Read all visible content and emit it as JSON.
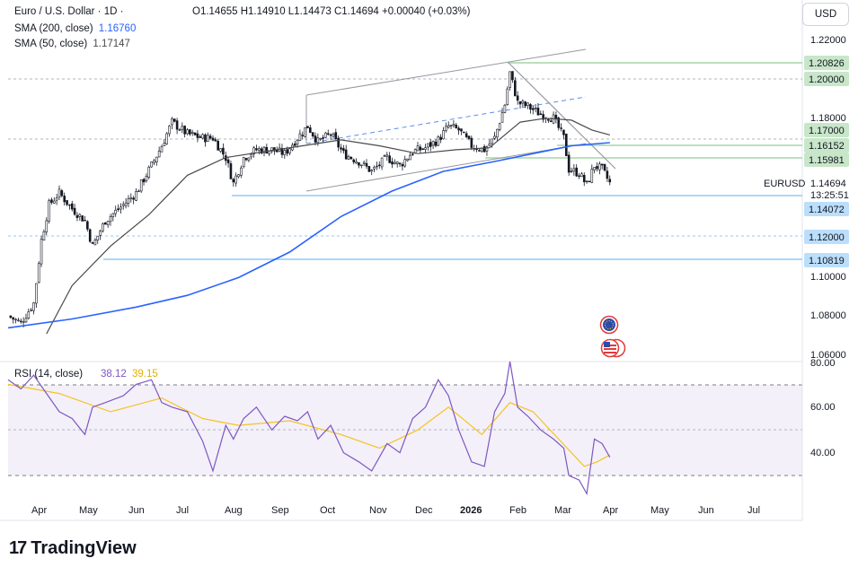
{
  "header": {
    "symbol_title": "Euro / U.S. Dollar · 1D ·",
    "ohlc": "O1.14655  H1.14910  L1.14473  C1.14694  +0.00040 (+0.03%)",
    "sma200_label": "SMA (200, close)",
    "sma200_value": "1.16760",
    "sma50_label": "SMA (50, close)",
    "sma50_value": "1.17147",
    "currency": "USD"
  },
  "brand": {
    "name": "TradingView",
    "logo_glyph": "17"
  },
  "colors": {
    "sma200": "#2962ff",
    "sma50": "#4a4a4a",
    "rsi": "#7e57c2",
    "rsi_ma": "#f5c320",
    "candle": "#131722",
    "resistance": "#c8e6c9",
    "support": "#bbdefb",
    "trend": "#9598a1"
  },
  "chart_data": {
    "type": "candlestick",
    "symbol": "EURUSD",
    "timeframe": "1D",
    "price_axis_ticks": [
      "1.22000",
      "1.18000",
      "1.10000",
      "1.08000",
      "1.06000"
    ],
    "price_labels": [
      {
        "text": "1.20826",
        "kind": "resistance"
      },
      {
        "text": "1.20000",
        "kind": "resistance"
      },
      {
        "text": "1.17000",
        "kind": "resistance"
      },
      {
        "text": "1.16152",
        "kind": "resistance"
      },
      {
        "text": "1.15981",
        "kind": "resistance"
      },
      {
        "text": "1.14072",
        "kind": "support"
      },
      {
        "text": "1.12000",
        "kind": "support"
      },
      {
        "text": "1.10819",
        "kind": "support"
      }
    ],
    "last_price_label": "EURUSD",
    "last_price": "1.14694",
    "countdown": "13:25:51",
    "x_ticks": [
      "Apr",
      "May",
      "Jun",
      "Jul",
      "Aug",
      "Sep",
      "Oct",
      "Nov",
      "Dec",
      "2026",
      "Feb",
      "Mar",
      "Apr",
      "May",
      "Jun",
      "Jul"
    ],
    "price_path": [
      [
        0,
        1.0795
      ],
      [
        5,
        1.076
      ],
      [
        10,
        1.086
      ],
      [
        13,
        1.118
      ],
      [
        16,
        1.136
      ],
      [
        20,
        1.142
      ],
      [
        25,
        1.134
      ],
      [
        30,
        1.128
      ],
      [
        33,
        1.115
      ],
      [
        38,
        1.128
      ],
      [
        45,
        1.136
      ],
      [
        50,
        1.142
      ],
      [
        56,
        1.156
      ],
      [
        60,
        1.166
      ],
      [
        64,
        1.178
      ],
      [
        70,
        1.172
      ],
      [
        76,
        1.17
      ],
      [
        80,
        1.17
      ],
      [
        85,
        1.16
      ],
      [
        88,
        1.147
      ],
      [
        92,
        1.16
      ],
      [
        97,
        1.164
      ],
      [
        103,
        1.164
      ],
      [
        108,
        1.162
      ],
      [
        113,
        1.17
      ],
      [
        117,
        1.176
      ],
      [
        121,
        1.168
      ],
      [
        126,
        1.172
      ],
      [
        131,
        1.162
      ],
      [
        137,
        1.158
      ],
      [
        142,
        1.153
      ],
      [
        148,
        1.16
      ],
      [
        153,
        1.156
      ],
      [
        158,
        1.163
      ],
      [
        163,
        1.165
      ],
      [
        168,
        1.169
      ],
      [
        172,
        1.176
      ],
      [
        176,
        1.174
      ],
      [
        181,
        1.166
      ],
      [
        186,
        1.164
      ],
      [
        190,
        1.17
      ],
      [
        194,
        1.187
      ],
      [
        196,
        1.203
      ],
      [
        199,
        1.188
      ],
      [
        203,
        1.186
      ],
      [
        208,
        1.182
      ],
      [
        213,
        1.18
      ],
      [
        217,
        1.17
      ],
      [
        219,
        1.154
      ],
      [
        223,
        1.152
      ],
      [
        226,
        1.146
      ],
      [
        229,
        1.156
      ],
      [
        232,
        1.154
      ],
      [
        235,
        1.147
      ]
    ],
    "sma50_path": [
      [
        15,
        1.0705
      ],
      [
        25,
        1.095
      ],
      [
        40,
        1.115
      ],
      [
        55,
        1.131
      ],
      [
        70,
        1.151
      ],
      [
        85,
        1.16
      ],
      [
        100,
        1.163
      ],
      [
        115,
        1.166
      ],
      [
        130,
        1.169
      ],
      [
        145,
        1.166
      ],
      [
        160,
        1.162
      ],
      [
        175,
        1.164
      ],
      [
        188,
        1.165
      ],
      [
        200,
        1.178
      ],
      [
        210,
        1.18
      ],
      [
        220,
        1.179
      ],
      [
        228,
        1.174
      ],
      [
        235,
        1.1715
      ]
    ],
    "sma200_path": [
      [
        0,
        1.0735
      ],
      [
        25,
        1.078
      ],
      [
        50,
        1.084
      ],
      [
        70,
        1.09
      ],
      [
        90,
        1.099
      ],
      [
        110,
        1.112
      ],
      [
        130,
        1.13
      ],
      [
        150,
        1.143
      ],
      [
        170,
        1.153
      ],
      [
        190,
        1.158
      ],
      [
        205,
        1.162
      ],
      [
        220,
        1.166
      ],
      [
        235,
        1.1676
      ]
    ],
    "rsi": {
      "label": "RSI (14, close)",
      "value": "38.12",
      "ma_value": "39.15",
      "axis_ticks": [
        "80.00",
        "60.00",
        "40.00"
      ],
      "upper_band": 70,
      "middle_band": 50,
      "lower_band": 30,
      "path": [
        [
          0,
          72
        ],
        [
          5,
          68
        ],
        [
          10,
          74
        ],
        [
          15,
          66
        ],
        [
          20,
          58
        ],
        [
          25,
          55
        ],
        [
          30,
          48
        ],
        [
          33,
          60
        ],
        [
          38,
          62
        ],
        [
          45,
          65
        ],
        [
          50,
          70
        ],
        [
          56,
          72
        ],
        [
          60,
          62
        ],
        [
          64,
          60
        ],
        [
          70,
          58
        ],
        [
          76,
          45
        ],
        [
          80,
          32
        ],
        [
          85,
          52
        ],
        [
          88,
          46
        ],
        [
          92,
          55
        ],
        [
          97,
          60
        ],
        [
          103,
          50
        ],
        [
          108,
          56
        ],
        [
          113,
          54
        ],
        [
          117,
          58
        ],
        [
          121,
          46
        ],
        [
          126,
          52
        ],
        [
          131,
          40
        ],
        [
          137,
          36
        ],
        [
          142,
          32
        ],
        [
          148,
          44
        ],
        [
          153,
          40
        ],
        [
          158,
          55
        ],
        [
          163,
          60
        ],
        [
          168,
          72
        ],
        [
          172,
          65
        ],
        [
          176,
          50
        ],
        [
          181,
          36
        ],
        [
          186,
          34
        ],
        [
          190,
          58
        ],
        [
          194,
          66
        ],
        [
          196,
          80
        ],
        [
          199,
          60
        ],
        [
          203,
          56
        ],
        [
          208,
          50
        ],
        [
          213,
          46
        ],
        [
          217,
          42
        ],
        [
          219,
          30
        ],
        [
          223,
          28
        ],
        [
          226,
          22
        ],
        [
          229,
          46
        ],
        [
          232,
          44
        ],
        [
          235,
          38
        ]
      ],
      "ma_path": [
        [
          0,
          70
        ],
        [
          20,
          66
        ],
        [
          40,
          58
        ],
        [
          60,
          64
        ],
        [
          76,
          55
        ],
        [
          90,
          52
        ],
        [
          110,
          54
        ],
        [
          130,
          48
        ],
        [
          145,
          42
        ],
        [
          160,
          50
        ],
        [
          172,
          60
        ],
        [
          185,
          48
        ],
        [
          196,
          62
        ],
        [
          205,
          58
        ],
        [
          215,
          46
        ],
        [
          225,
          34
        ],
        [
          230,
          36
        ],
        [
          235,
          39
        ]
      ]
    }
  }
}
